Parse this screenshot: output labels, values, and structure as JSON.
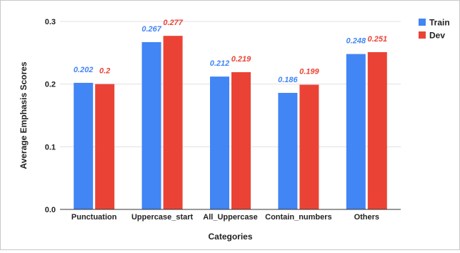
{
  "chart_data": {
    "type": "bar",
    "title": "",
    "xlabel": "Categories",
    "ylabel": "Average Emphasis Scores",
    "categories": [
      "Punctuation",
      "Uppercase_start",
      "All_Uppercase",
      "Contain_numbers",
      "Others"
    ],
    "series": [
      {
        "name": "Train",
        "color": "#4285f4",
        "values": [
          0.202,
          0.267,
          0.212,
          0.186,
          0.248
        ],
        "labels": [
          "0.202",
          "0.267",
          "0.212",
          "0.186",
          "0.248"
        ]
      },
      {
        "name": "Dev",
        "color": "#ea4335",
        "values": [
          0.2,
          0.277,
          0.219,
          0.199,
          0.251
        ],
        "labels": [
          "0.2",
          "0.277",
          "0.219",
          "0.199",
          "0.251"
        ]
      }
    ],
    "ylim": [
      0,
      0.3
    ],
    "yticks": [
      "0.0",
      "0.1",
      "0.2",
      "0.3"
    ],
    "grid": true,
    "legend_position": "top-right"
  }
}
